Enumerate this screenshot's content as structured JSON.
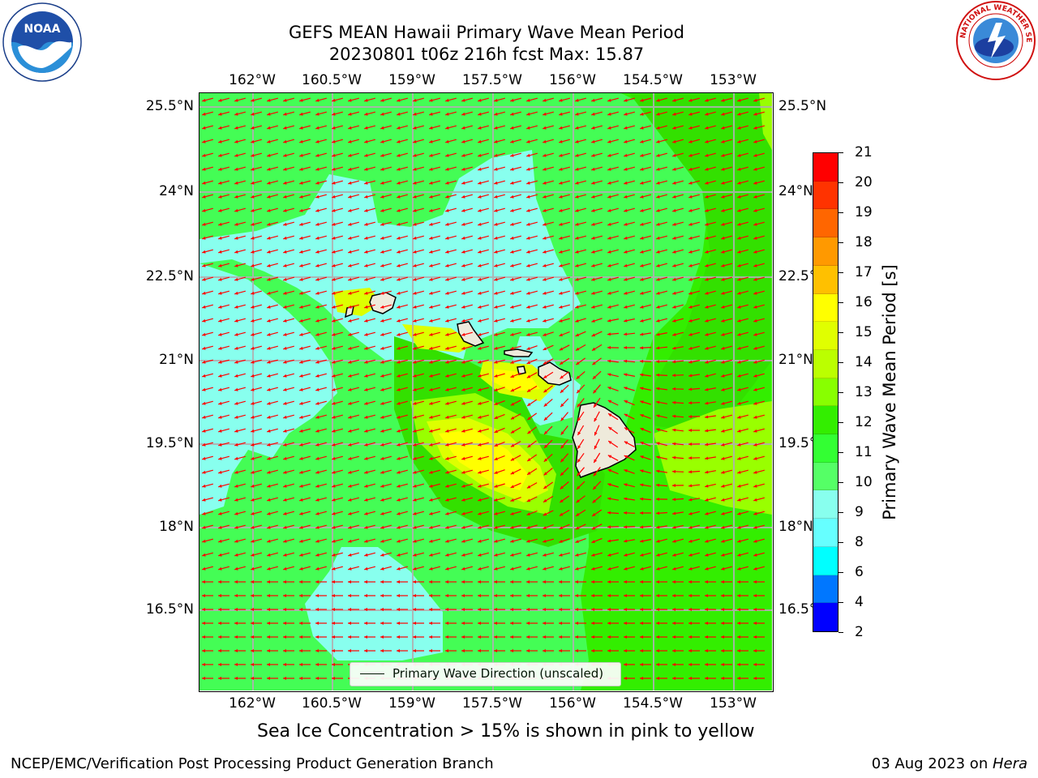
{
  "header": {
    "title_line1": "GEFS MEAN Hawaii Primary Wave Mean Period",
    "title_line2": "20230801 t06z 216h fcst   Max: 15.87"
  },
  "logos": {
    "left": "NOAA",
    "right": "NATIONAL WEATHER SERVICE"
  },
  "map": {
    "lon_ticks": [
      "162°W",
      "160.5°W",
      "159°W",
      "157.5°W",
      "156°W",
      "154.5°W",
      "153°W"
    ],
    "lat_ticks": [
      "25.5°N",
      "24°N",
      "22.5°N",
      "21°N",
      "19.5°N",
      "18°N",
      "16.5°N"
    ],
    "legend_label": "Primary Wave Direction (unscaled)",
    "arrow_color": "#ff0000",
    "coast_color": "#000000",
    "land_color": "#eeeadb"
  },
  "colorbar": {
    "label": "Primary Wave Mean Period [s]",
    "ticks": [
      "21",
      "20",
      "19",
      "18",
      "17",
      "16",
      "15",
      "14",
      "13",
      "12",
      "11",
      "10",
      "9",
      "8",
      "6",
      "4",
      "2"
    ],
    "colors": [
      "#ff0000",
      "#ff3300",
      "#ff6600",
      "#ff9900",
      "#ffc000",
      "#ffff00",
      "#e0ff00",
      "#bbff00",
      "#88ff00",
      "#33ee00",
      "#33ff33",
      "#55ff66",
      "#88ffee",
      "#66ffff",
      "#00ffff",
      "#0077ff",
      "#0000ff"
    ]
  },
  "caption": "Sea Ice Concentration > 15% is shown in pink to yellow",
  "footer": {
    "left": "NCEP/EMC/Verification Post Processing Product Generation Branch",
    "date": "03 Aug 2023 on ",
    "host": "Hera"
  }
}
